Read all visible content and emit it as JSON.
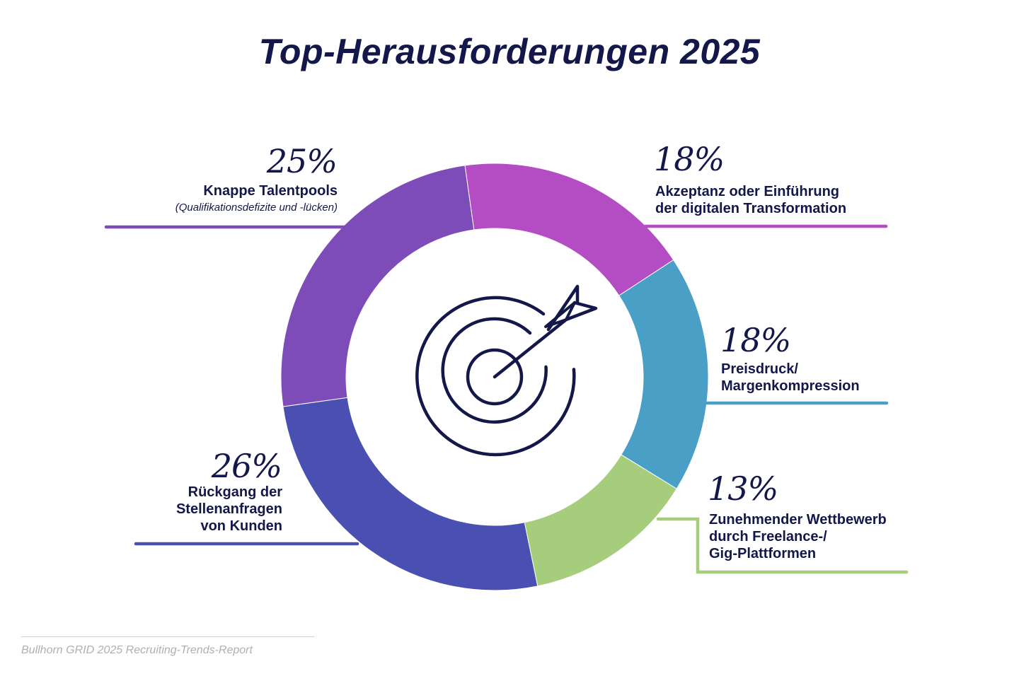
{
  "title": "Top-Herausforderungen 2025",
  "source": "Bullhorn GRID 2025 Recruiting-Trends-Report",
  "icon": "target-arrow-icon",
  "chart_data": {
    "type": "pie",
    "title": "Top-Herausforderungen 2025",
    "slices": [
      {
        "label": "Akzeptanz oder Einführung der digitalen Transformation",
        "value": 18,
        "display": "18%",
        "color": "#b44cc3"
      },
      {
        "label": "Preisdruck/ Margenkompression",
        "value": 18,
        "display": "18%",
        "color": "#4a9fc6"
      },
      {
        "label": "Zunehmender Wettbewerb durch Freelance-/ Gig-Plattformen",
        "value": 13,
        "display": "13%",
        "color": "#a6cd7c"
      },
      {
        "label": "Rückgang der Stellenanfragen von Kunden",
        "value": 26,
        "display": "26%",
        "color": "#4a50b1"
      },
      {
        "label": "Knappe Talentpools",
        "sublabel": "(Qualifikationsdefizite und -lücken)",
        "value": 25,
        "display": "25%",
        "color": "#7e4cb8"
      }
    ]
  },
  "labels": {
    "digital": {
      "pct": "18%",
      "line1": "Akzeptanz oder Einführung",
      "line2": "der digitalen Transformation"
    },
    "price": {
      "pct": "18%",
      "line1": "Preisdruck/",
      "line2": "Margenkompression"
    },
    "gig": {
      "pct": "13%",
      "line1": "Zunehmender Wettbewerb",
      "line2": "durch Freelance-/",
      "line3": "Gig-Plattformen"
    },
    "decline": {
      "pct": "26%",
      "line1": "Rückgang der",
      "line2": "Stellenanfragen",
      "line3": "von Kunden"
    },
    "talent": {
      "pct": "25%",
      "line1": "Knappe Talentpools",
      "sub": "(Qualifikationsdefizite und -lücken)"
    }
  }
}
